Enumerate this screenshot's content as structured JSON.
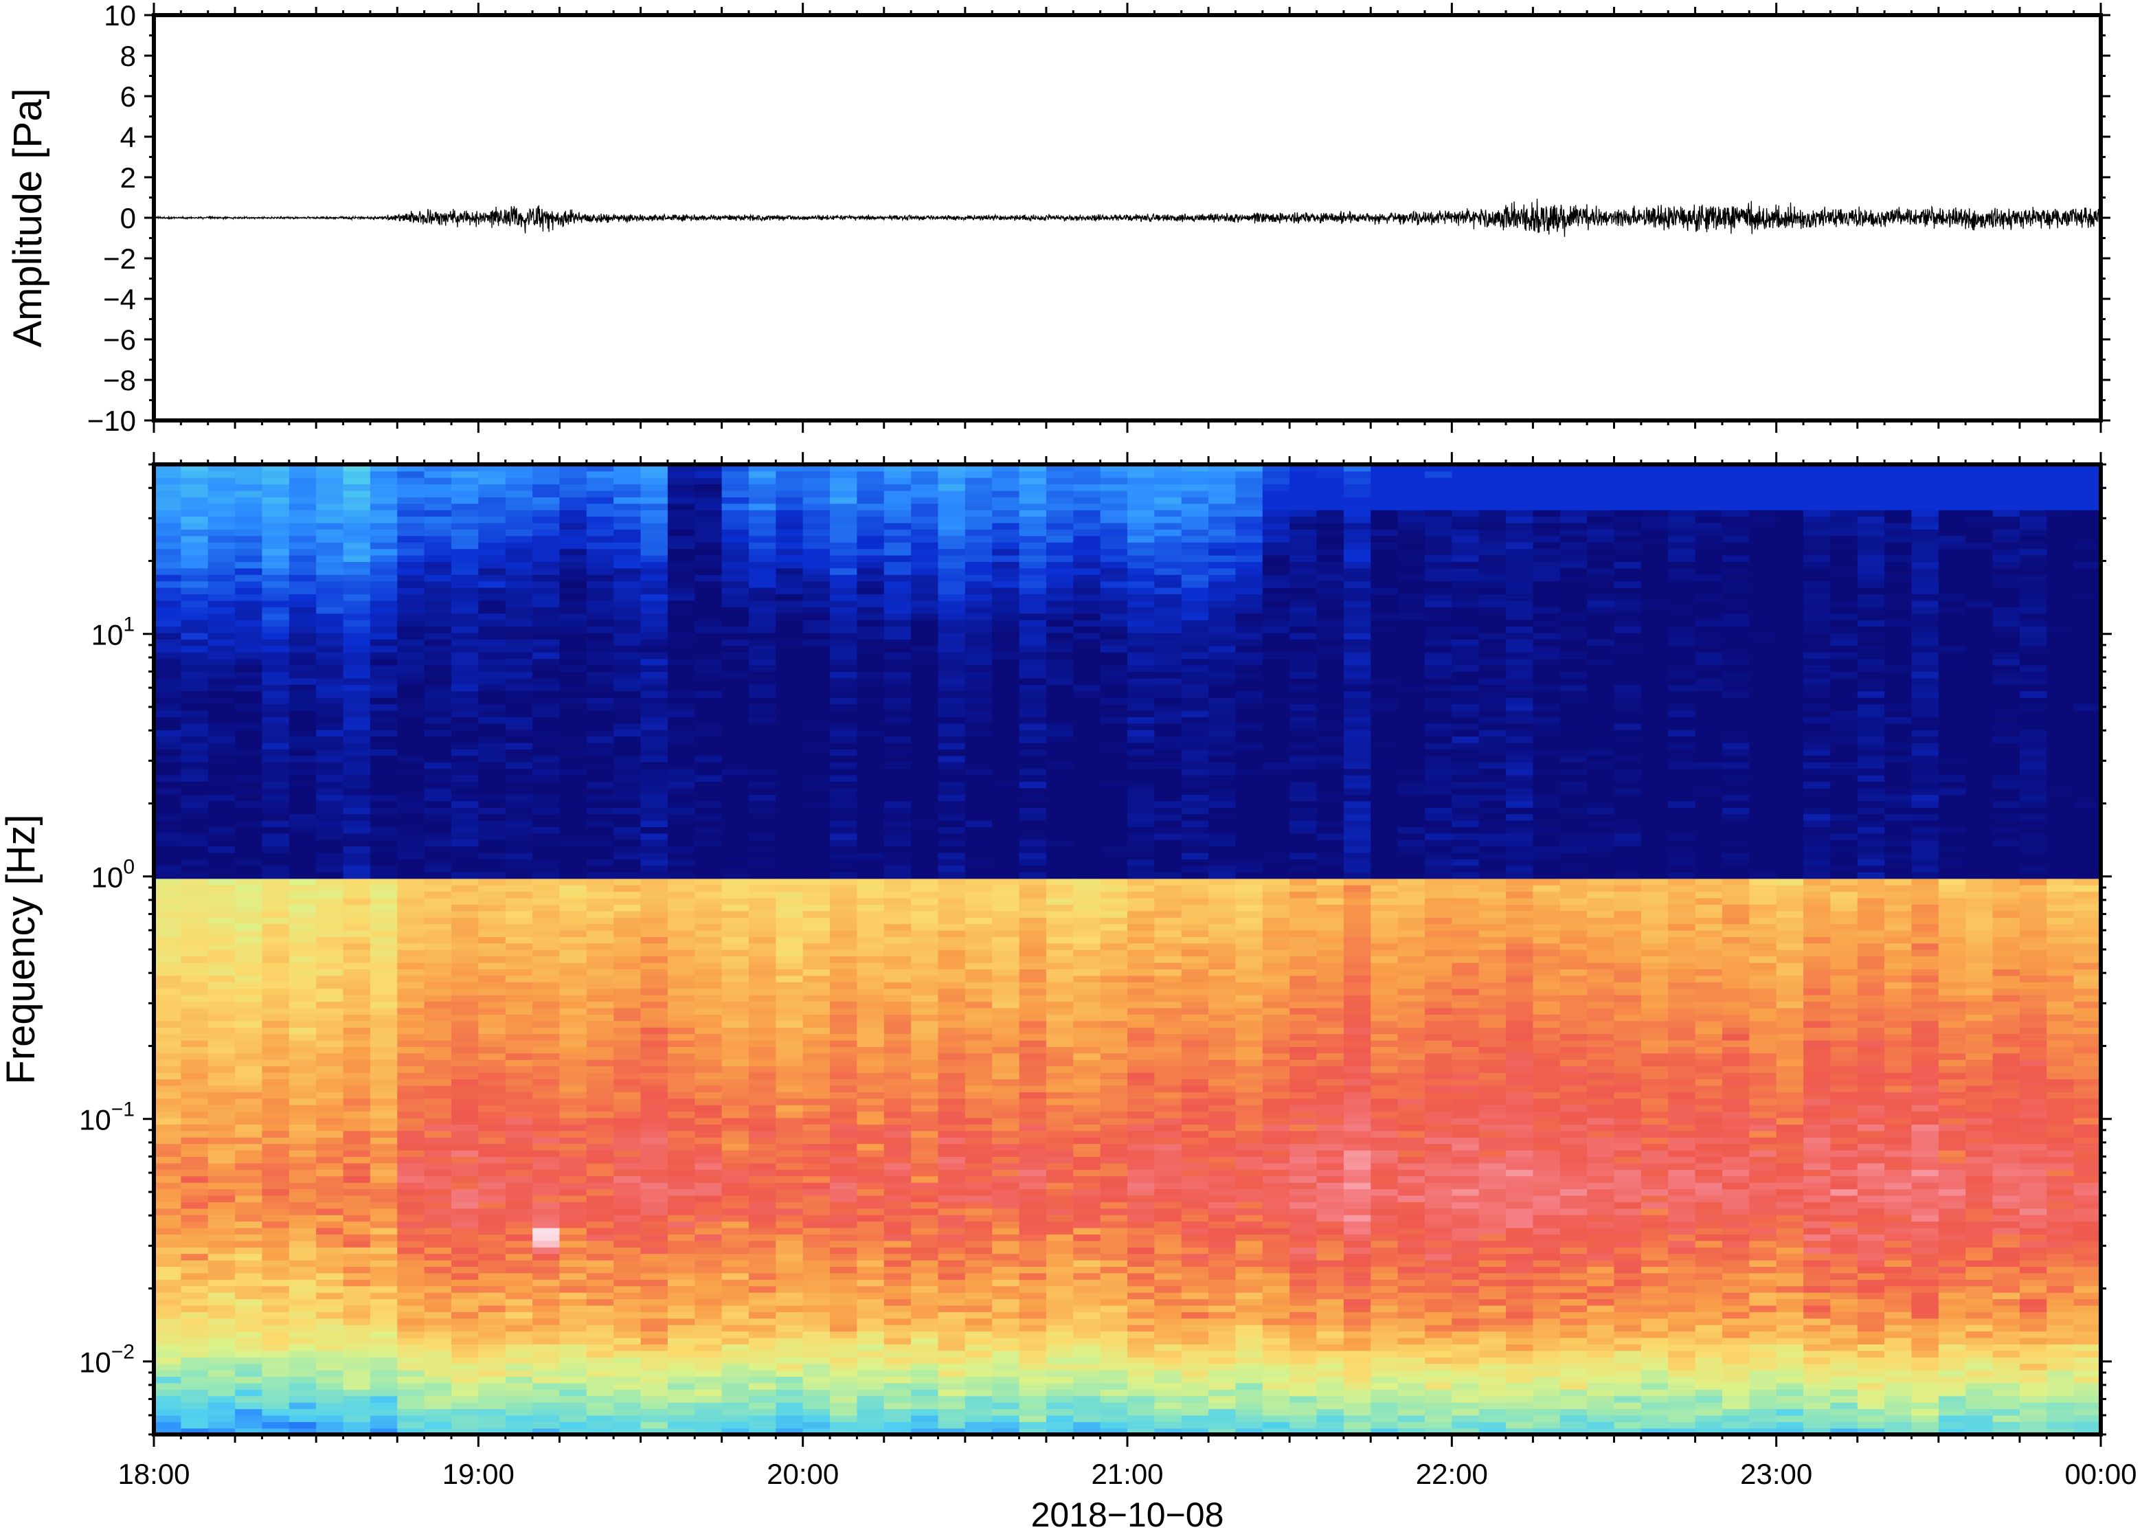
{
  "chart_data": [
    {
      "type": "line",
      "ylabel": "Amplitude [Pa]",
      "ylim": [
        -10,
        10
      ],
      "yticks": [
        "10",
        "8",
        "6",
        "4",
        "2",
        "0",
        "−2",
        "−4",
        "−6",
        "−8",
        "−10"
      ],
      "ytick_values": [
        10,
        8,
        6,
        4,
        2,
        0,
        -2,
        -4,
        -6,
        -8,
        -10
      ],
      "xlim": [
        "2018-10-08 18:00",
        "2018-10-09 00:00"
      ],
      "grid": false,
      "series": [
        {
          "color": "#000000",
          "envelope_pa": {
            "hours": [
              18.0,
              18.5,
              18.7,
              18.85,
              19.0,
              19.1,
              19.2,
              19.3,
              19.5,
              19.8,
              20.0,
              20.5,
              21.0,
              21.2,
              21.5,
              21.8,
              22.0,
              22.3,
              22.5,
              22.9,
              23.2,
              23.5,
              23.8,
              24.0
            ],
            "max_abs": [
              0.1,
              0.1,
              0.2,
              0.9,
              0.8,
              1.2,
              1.4,
              0.6,
              0.4,
              0.3,
              0.25,
              0.25,
              0.35,
              0.4,
              0.6,
              0.6,
              0.8,
              1.7,
              0.9,
              1.6,
              1.0,
              1.1,
              1.1,
              1.0
            ]
          }
        }
      ]
    },
    {
      "type": "heatmap",
      "ylabel": "Frequency [Hz]",
      "xlabel": "2018−10−08",
      "yscale": "log",
      "ylim_hz": [
        0.005,
        50
      ],
      "yticks": [
        {
          "value": 10,
          "base": "10",
          "exp": "1"
        },
        {
          "value": 1,
          "base": "10",
          "exp": "0"
        },
        {
          "value": 0.1,
          "base": "10",
          "exp": "−1"
        },
        {
          "value": 0.01,
          "base": "10",
          "exp": "−2"
        }
      ],
      "xticks": [
        "18:00",
        "19:00",
        "20:00",
        "21:00",
        "22:00",
        "23:00",
        "00:00"
      ],
      "xtick_hours": [
        18,
        19,
        20,
        21,
        22,
        23,
        24
      ],
      "colormap": [
        "#0a0a78",
        "#0b2fd2",
        "#2e8fff",
        "#52d2ee",
        "#9ae8b4",
        "#dcf28a",
        "#fbd96c",
        "#f9a04a",
        "#ef5a4e",
        "#f47f85",
        "#fbe0e8"
      ],
      "hotspots": [
        {
          "hour": 19.2,
          "hz": 0.033,
          "value": 1.0
        },
        {
          "hour": 19.1,
          "hz": 0.05,
          "value": 0.88
        }
      ]
    }
  ]
}
